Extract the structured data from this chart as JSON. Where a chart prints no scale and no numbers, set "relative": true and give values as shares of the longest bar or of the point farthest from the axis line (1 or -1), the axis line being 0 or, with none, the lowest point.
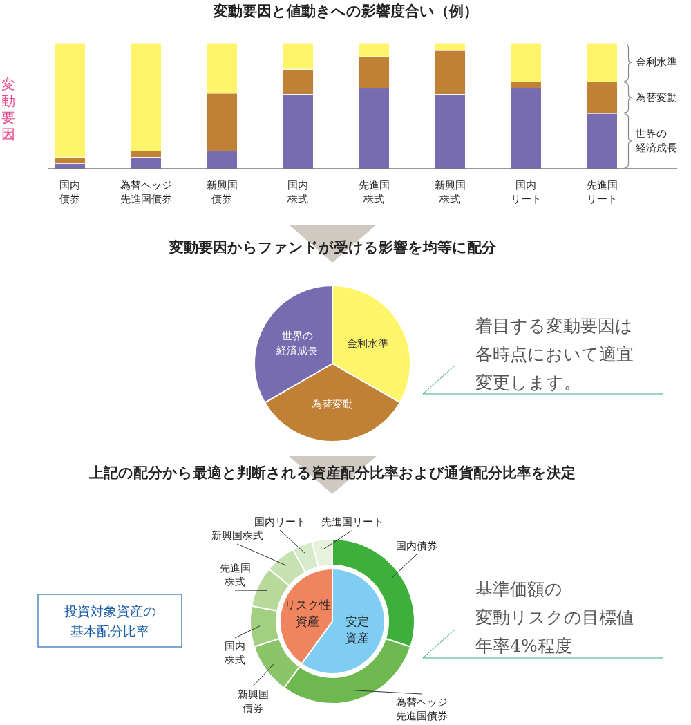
{
  "chart_data": [
    {
      "type": "bar",
      "stacked": true,
      "relative": true,
      "title": "変動要因と値動きへの影響度合い（例）",
      "ylabel": "変動要因",
      "categories": [
        "国内債券",
        "為替ヘッジ先進国債券",
        "新興国債券",
        "国内株式",
        "先進国株式",
        "新興国株式",
        "国内リート",
        "先進国リート"
      ],
      "series": [
        {
          "name": "世界の経済成長",
          "color": "#776cb0",
          "values": [
            0.04,
            0.09,
            0.14,
            0.59,
            0.64,
            0.59,
            0.64,
            0.44
          ]
        },
        {
          "name": "為替変動",
          "color": "#c08035",
          "values": [
            0.05,
            0.05,
            0.46,
            0.2,
            0.25,
            0.35,
            0.05,
            0.25
          ]
        },
        {
          "name": "金利水準",
          "color": "#fef56a",
          "values": [
            0.91,
            0.86,
            0.4,
            0.21,
            0.11,
            0.06,
            0.31,
            0.31
          ]
        }
      ]
    },
    {
      "type": "pie",
      "title": "変動要因からファンドが受ける影響を均等に配分",
      "categories": [
        "金利水準",
        "為替変動",
        "世界の経済成長"
      ],
      "values": [
        33.33,
        33.33,
        33.34
      ],
      "colors": [
        "#fef56a",
        "#c08035",
        "#776cb0"
      ],
      "annotations": [
        "着目する変動要因は各時点において適宜変更します。"
      ]
    },
    {
      "type": "donut",
      "title": "上記の配分から最適と判断される資産配分比率および通貨配分比率を決定",
      "annotations": [
        "投資対象資産の基本配分比率",
        "基準価額の変動リスクの目標値年率4%程度"
      ],
      "categories": [
        "国内債券",
        "為替ヘッジ先進国債券",
        "新興国債券",
        "国内株式",
        "先進国株式",
        "新興国株式",
        "国内リート",
        "先進国リート"
      ],
      "values": [
        30,
        30,
        10,
        8,
        8,
        6,
        4,
        4
      ],
      "colors": [
        "#3daf3a",
        "#6db950",
        "#8cc46a",
        "#a3cf80",
        "#b7da9b",
        "#c7e2b2",
        "#d6ebc9",
        "#e6f2dc"
      ]
    },
    {
      "type": "pie",
      "categories": [
        "安定資産",
        "リスク性資産"
      ],
      "values": [
        60,
        40
      ],
      "colors": [
        "#7fcdf2",
        "#f0845e"
      ]
    }
  ]
}
